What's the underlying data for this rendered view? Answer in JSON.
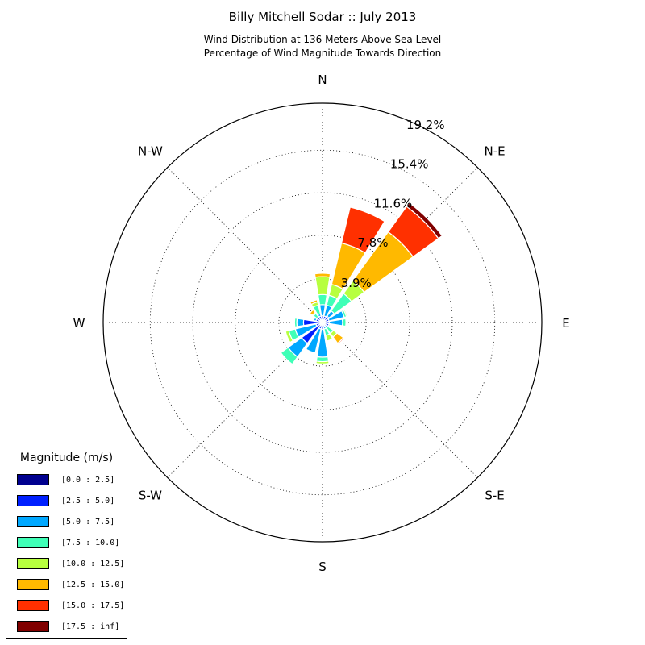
{
  "title": "Billy Mitchell Sodar :: July 2013",
  "subtitle_lines": [
    "Wind Distribution at 136 Meters Above Sea Level",
    "Percentage of Wind Magnitude Towards Direction"
  ],
  "legend": {
    "title": "Magnitude (m/s)",
    "items": [
      {
        "label": "[0.0 : 2.5]",
        "color": "#00008f"
      },
      {
        "label": "[2.5 : 5.0]",
        "color": "#0020ff"
      },
      {
        "label": "[5.0 : 7.5]",
        "color": "#00a8ff"
      },
      {
        "label": "[7.5 : 10.0]",
        "color": "#3fffb7"
      },
      {
        "label": "[10.0 : 12.5]",
        "color": "#b7ff3f"
      },
      {
        "label": "[12.5 : 15.0]",
        "color": "#ffb900"
      },
      {
        "label": "[15.0 : 17.5]",
        "color": "#ff3000"
      },
      {
        "label": "[17.5 : inf]",
        "color": "#800000"
      }
    ]
  },
  "chart_data": {
    "type": "windrose",
    "title": "Billy Mitchell Sodar :: July 2013",
    "subtitle": "Wind Distribution at 136 Meters Above Sea Level\nPercentage of Wind Magnitude Towards Direction",
    "direction_labels": [
      {
        "label": "N",
        "angle_deg": 0
      },
      {
        "label": "N-E",
        "angle_deg": 45
      },
      {
        "label": "E",
        "angle_deg": 90
      },
      {
        "label": "S-E",
        "angle_deg": 135
      },
      {
        "label": "S",
        "angle_deg": 180
      },
      {
        "label": "S-W",
        "angle_deg": 225
      },
      {
        "label": "W",
        "angle_deg": 270
      },
      {
        "label": "N-W",
        "angle_deg": 315
      }
    ],
    "radial_ticks": [
      3.9,
      7.8,
      11.6,
      15.4,
      19.2
    ],
    "radial_tick_labels": [
      "3.9%",
      "7.8%",
      "11.6%",
      "15.4%",
      "19.2%"
    ],
    "r_max": 19.6,
    "grid": true,
    "legend_position": "lower-left",
    "sector_count": 16,
    "bin_labels": [
      "[0.0 : 2.5]",
      "[2.5 : 5.0]",
      "[5.0 : 7.5]",
      "[7.5 : 10.0]",
      "[10.0 : 12.5]",
      "[12.5 : 15.0]",
      "[15.0 : 17.5]",
      "[17.5 : inf]"
    ],
    "bin_colors": [
      "#00008f",
      "#0020ff",
      "#00a8ff",
      "#3fffb7",
      "#b7ff3f",
      "#ffb900",
      "#ff3000",
      "#800000"
    ],
    "sectors": [
      {
        "direction": "N",
        "angle_deg": 0,
        "cumulative": [
          0.2,
          0.6,
          1.6,
          2.5,
          4.1,
          4.4,
          4.4,
          4.4
        ]
      },
      {
        "direction": "NNE",
        "angle_deg": 22.5,
        "cumulative": [
          0.2,
          0.6,
          1.6,
          2.5,
          3.5,
          7.3,
          10.6,
          10.6
        ]
      },
      {
        "direction": "NE",
        "angle_deg": 45,
        "cumulative": [
          0.2,
          0.7,
          1.3,
          3.2,
          4.6,
          10.0,
          12.8,
          13.2
        ]
      },
      {
        "direction": "ENE",
        "angle_deg": 67.5,
        "cumulative": [
          0.2,
          0.6,
          2.0,
          2.2,
          2.3,
          2.3,
          2.3,
          2.3
        ]
      },
      {
        "direction": "E",
        "angle_deg": 90,
        "cumulative": [
          0.2,
          0.6,
          1.8,
          2.1,
          2.1,
          2.1,
          2.1,
          2.1
        ]
      },
      {
        "direction": "ESE",
        "angle_deg": 112.5,
        "cumulative": [
          0.2,
          0.6,
          0.7,
          0.7,
          0.7,
          0.7,
          0.7,
          0.7
        ]
      },
      {
        "direction": "SE",
        "angle_deg": 135,
        "cumulative": [
          0.2,
          0.4,
          0.6,
          1.2,
          1.6,
          2.3,
          2.4,
          2.4
        ]
      },
      {
        "direction": "SSE",
        "angle_deg": 157.5,
        "cumulative": [
          0.2,
          0.4,
          0.6,
          1.2,
          1.7,
          1.7,
          1.7,
          1.7
        ]
      },
      {
        "direction": "S",
        "angle_deg": 180,
        "cumulative": [
          0.2,
          0.6,
          3.1,
          3.5,
          3.7,
          3.7,
          3.7,
          3.7
        ]
      },
      {
        "direction": "SSW",
        "angle_deg": 202.5,
        "cumulative": [
          0.2,
          0.6,
          2.8,
          2.8,
          2.8,
          2.8,
          2.8,
          2.8
        ]
      },
      {
        "direction": "SW",
        "angle_deg": 225,
        "cumulative": [
          0.2,
          2.3,
          3.8,
          4.6,
          4.6,
          4.6,
          4.6,
          4.6
        ]
      },
      {
        "direction": "WSW",
        "angle_deg": 247.5,
        "cumulative": [
          0.2,
          0.6,
          2.5,
          3.1,
          3.4,
          3.4,
          3.4,
          3.4
        ]
      },
      {
        "direction": "W",
        "angle_deg": 270,
        "cumulative": [
          0.2,
          1.7,
          2.3,
          2.5,
          2.5,
          2.5,
          2.5,
          2.5
        ]
      },
      {
        "direction": "WNW",
        "angle_deg": 292.5,
        "cumulative": [
          0.2,
          0.6,
          0.8,
          0.8,
          0.8,
          0.8,
          0.8,
          0.8
        ]
      },
      {
        "direction": "NW",
        "angle_deg": 315,
        "cumulative": [
          0.2,
          0.6,
          0.6,
          1.0,
          1.1,
          1.4,
          1.4,
          1.4
        ]
      },
      {
        "direction": "NNW",
        "angle_deg": 337.5,
        "cumulative": [
          0.2,
          0.6,
          0.8,
          1.6,
          1.9,
          2.1,
          2.1,
          2.1
        ]
      }
    ]
  }
}
